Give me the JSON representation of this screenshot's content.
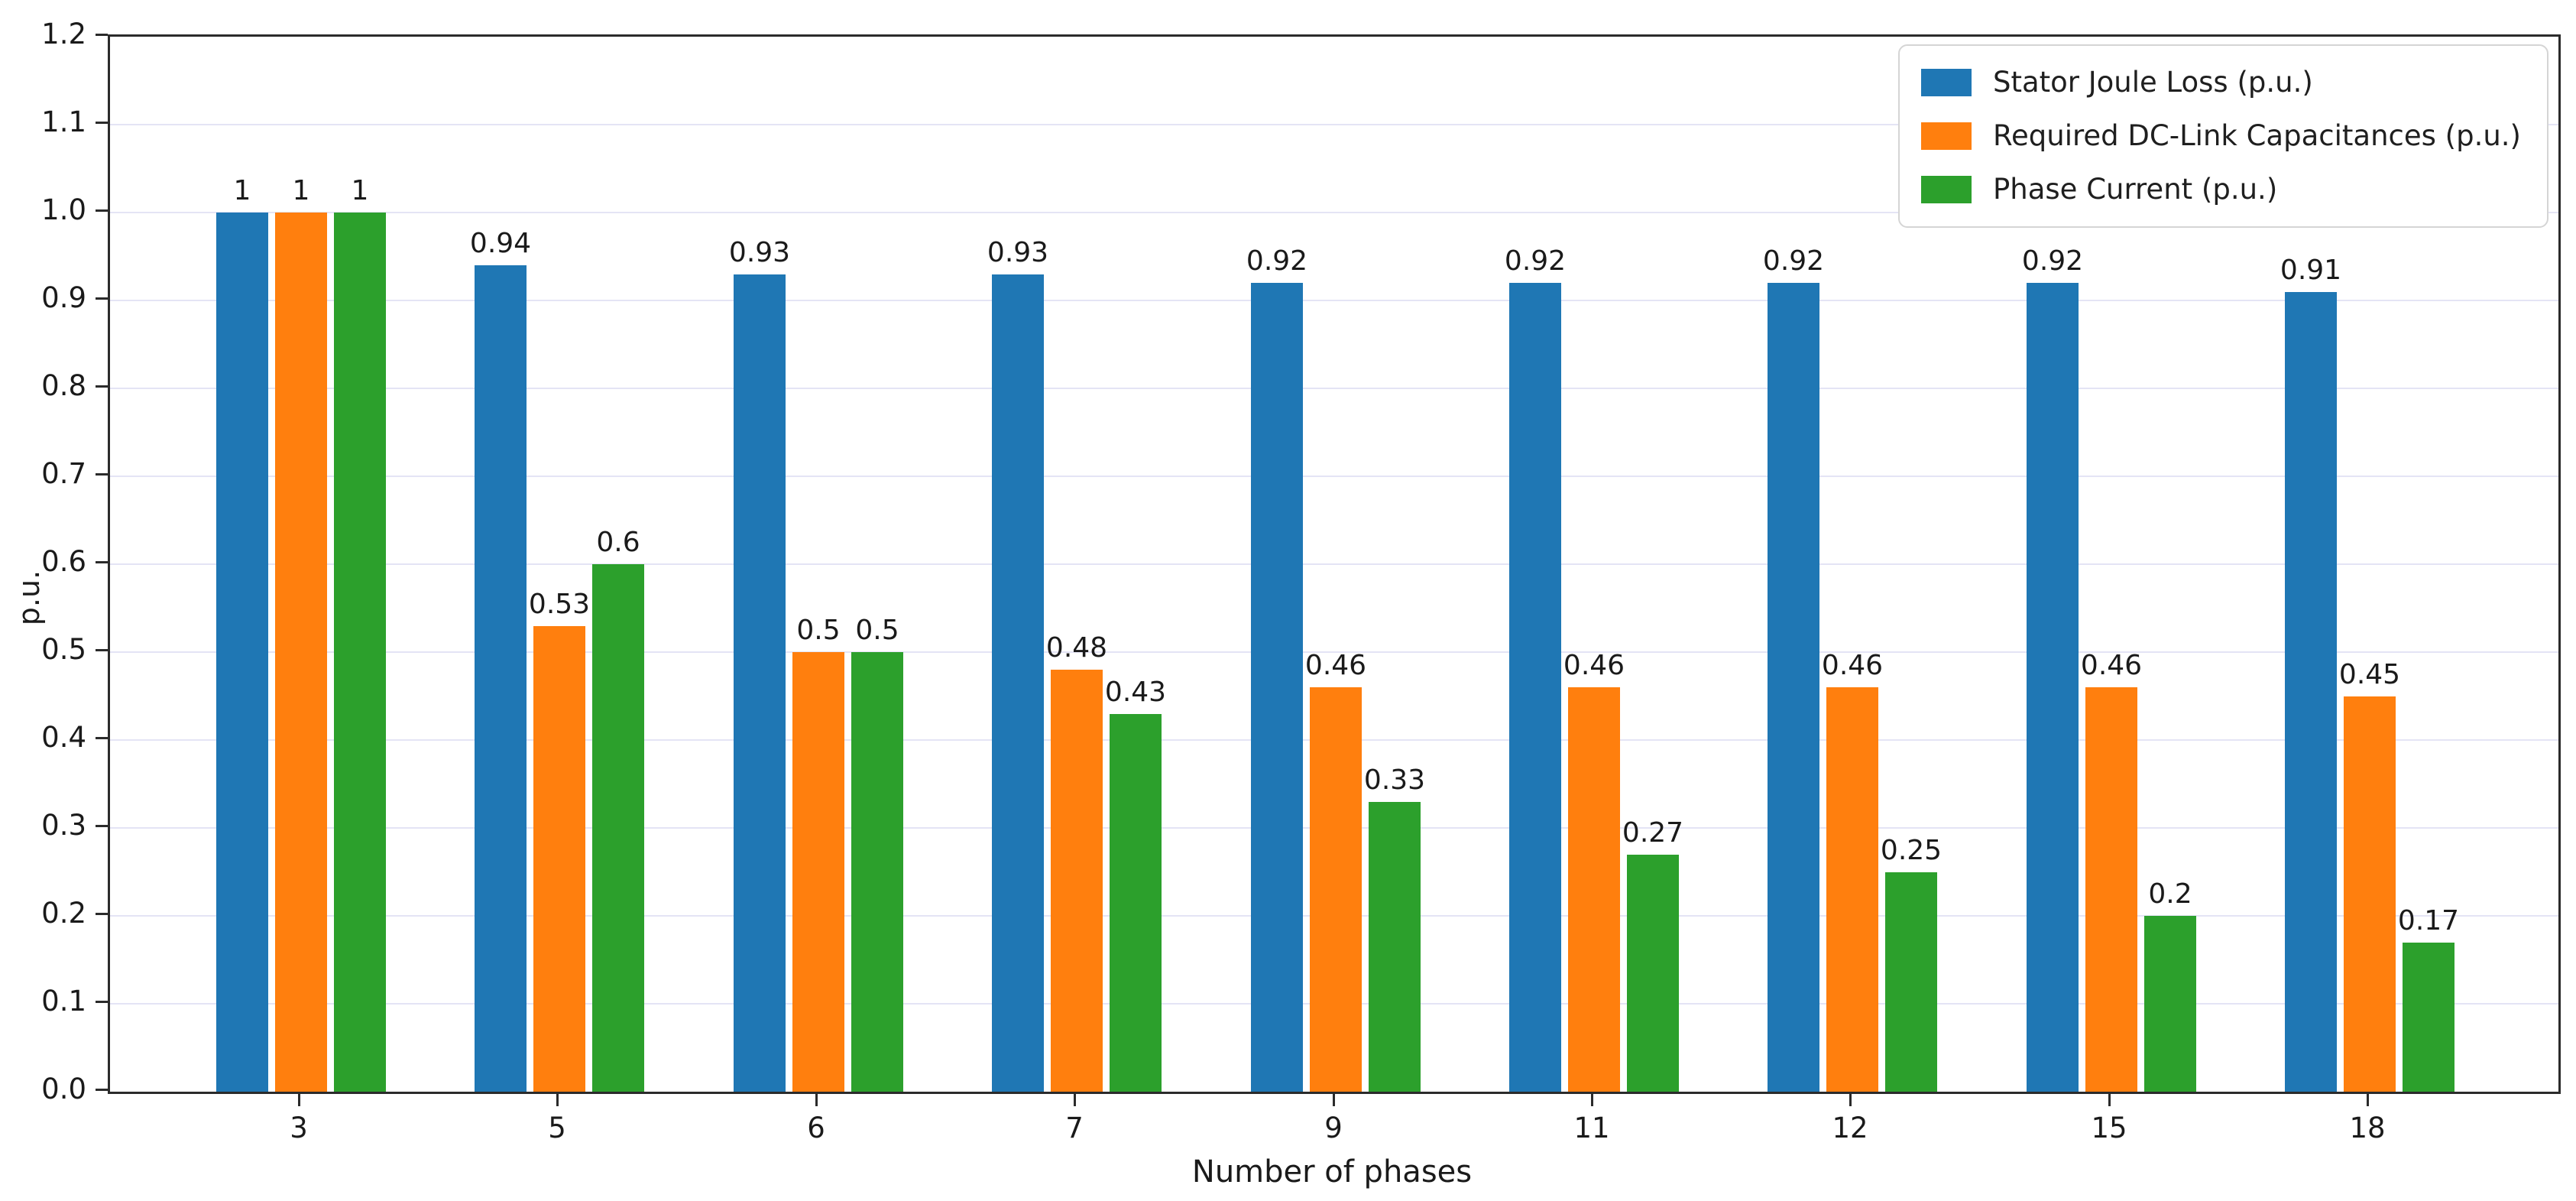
{
  "chart_data": {
    "type": "bar",
    "title": "",
    "xlabel": "Number of phases",
    "ylabel": "p.u.",
    "categories": [
      "3",
      "5",
      "6",
      "7",
      "9",
      "11",
      "12",
      "15",
      "18"
    ],
    "series": [
      {
        "name": "Stator Joule Loss (p.u.)",
        "color": "#1f77b4",
        "values": [
          1,
          0.94,
          0.93,
          0.93,
          0.92,
          0.92,
          0.92,
          0.92,
          0.91
        ],
        "labels": [
          "1",
          "0.94",
          "0.93",
          "0.93",
          "0.92",
          "0.92",
          "0.92",
          "0.92",
          "0.91"
        ]
      },
      {
        "name": "Required DC-Link Capacitances (p.u.)",
        "color": "#ff7f0e",
        "values": [
          1,
          0.53,
          0.5,
          0.48,
          0.46,
          0.46,
          0.46,
          0.46,
          0.45
        ],
        "labels": [
          "1",
          "0.53",
          "0.5",
          "0.48",
          "0.46",
          "0.46",
          "0.46",
          "0.46",
          "0.45"
        ]
      },
      {
        "name": "Phase Current (p.u.)",
        "color": "#2ca02c",
        "values": [
          1,
          0.6,
          0.5,
          0.43,
          0.33,
          0.27,
          0.25,
          0.2,
          0.17
        ],
        "labels": [
          "1",
          "0.6",
          "0.5",
          "0.43",
          "0.33",
          "0.27",
          "0.25",
          "0.2",
          "0.17"
        ]
      }
    ],
    "ylim": [
      0,
      1.2
    ],
    "yticks": [
      "0.0",
      "0.1",
      "0.2",
      "0.3",
      "0.4",
      "0.5",
      "0.6",
      "0.7",
      "0.8",
      "0.9",
      "1.0",
      "1.1",
      "1.2"
    ],
    "grid": true,
    "legend_position": "upper right"
  },
  "colors": {
    "grid": "#e4e4f5",
    "spine": "#2b2b2b",
    "text": "#1a1a1a",
    "legend_border": "#d5d5d5",
    "background": "#ffffff"
  }
}
